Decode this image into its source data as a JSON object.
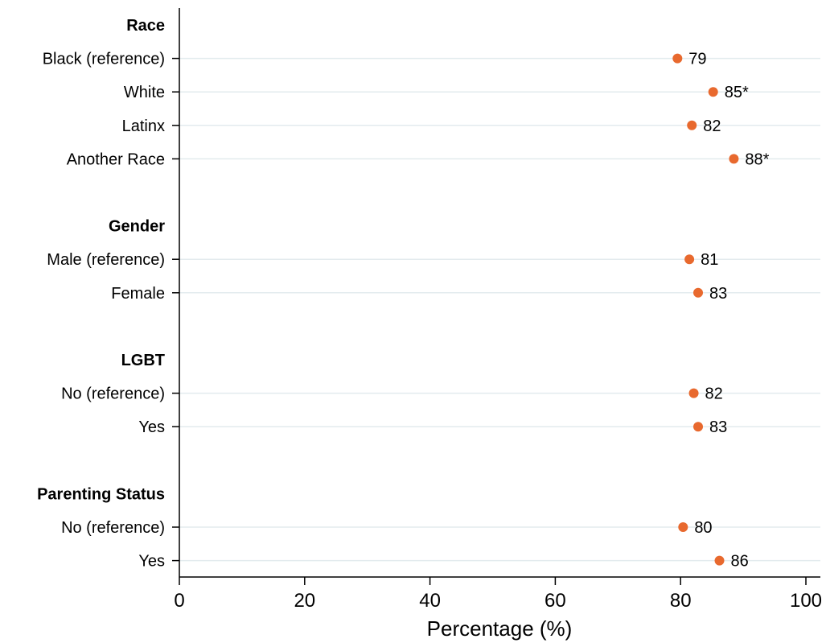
{
  "chart_data": {
    "type": "scatter",
    "orientation": "horizontal",
    "xlabel": "Percentage (%)",
    "xlim": [
      0,
      100
    ],
    "xticks": [
      0,
      20,
      40,
      60,
      80,
      100
    ],
    "grid": true,
    "marker_color": "#e8692e",
    "rows": [
      {
        "kind": "group",
        "label": "Race"
      },
      {
        "kind": "item",
        "label": "Black (reference)",
        "value": 79.5,
        "display": "79"
      },
      {
        "kind": "item",
        "label": "White",
        "value": 85.2,
        "display": "85*"
      },
      {
        "kind": "item",
        "label": "Latinx",
        "value": 81.8,
        "display": "82"
      },
      {
        "kind": "item",
        "label": "Another Race",
        "value": 88.5,
        "display": "88*"
      },
      {
        "kind": "gap"
      },
      {
        "kind": "group",
        "label": "Gender"
      },
      {
        "kind": "item",
        "label": "Male (reference)",
        "value": 81.4,
        "display": "81"
      },
      {
        "kind": "item",
        "label": "Female",
        "value": 82.8,
        "display": "83"
      },
      {
        "kind": "gap"
      },
      {
        "kind": "group",
        "label": "LGBT"
      },
      {
        "kind": "item",
        "label": "No (reference)",
        "value": 82.1,
        "display": "82"
      },
      {
        "kind": "item",
        "label": "Yes",
        "value": 82.8,
        "display": "83"
      },
      {
        "kind": "gap"
      },
      {
        "kind": "group",
        "label": "Parenting Status"
      },
      {
        "kind": "item",
        "label": "No (reference)",
        "value": 80.4,
        "display": "80"
      },
      {
        "kind": "item",
        "label": "Yes",
        "value": 86.2,
        "display": "86"
      }
    ]
  }
}
